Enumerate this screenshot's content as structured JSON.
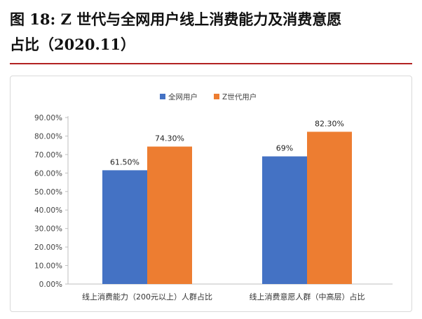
{
  "figure": {
    "title_line1": "图  18:  Z 世代与全网用户线上消费能力及消费意愿",
    "title_line2": "占比（2020.11）"
  },
  "colors": {
    "series_1": "#4472c4",
    "series_2": "#ed7d31",
    "title_rule": "#b22222"
  },
  "chart_data": {
    "type": "bar",
    "categories": [
      "线上消费能力（200元以上）人群占比",
      "线上消费意愿人群（中高层）占比"
    ],
    "series": [
      {
        "name": "全网用户",
        "values": [
          61.5,
          69.0
        ],
        "labels": [
          "61.50%",
          "69%"
        ]
      },
      {
        "name": "Z世代用户",
        "values": [
          74.3,
          82.3
        ],
        "labels": [
          "74.30%",
          "82.30%"
        ]
      }
    ],
    "ylim": [
      0,
      90
    ],
    "yticks": [
      0,
      10,
      20,
      30,
      40,
      50,
      60,
      70,
      80,
      90
    ],
    "ytick_labels": [
      "0.00%",
      "10.00%",
      "20.00%",
      "30.00%",
      "40.00%",
      "50.00%",
      "60.00%",
      "70.00%",
      "80.00%",
      "90.00%"
    ],
    "legend_position": "top-center",
    "grid": false,
    "xlabel": "",
    "ylabel": ""
  }
}
